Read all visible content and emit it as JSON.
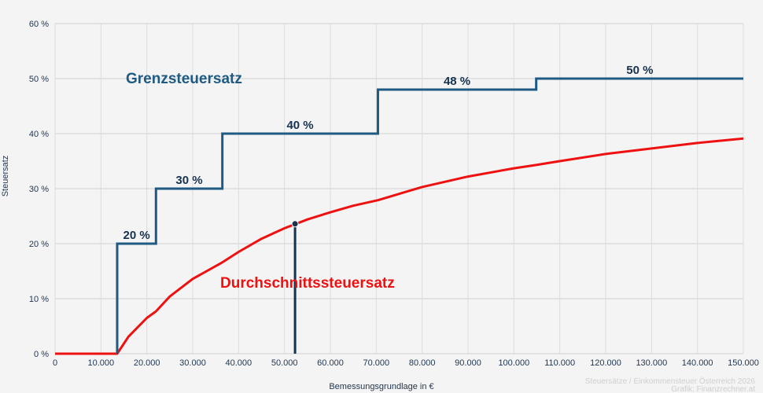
{
  "chart_data": {
    "type": "line",
    "title": "",
    "xlabel": "Bemessungsgrundlage in €",
    "ylabel": "Steuersatz",
    "xlim": [
      0,
      150000
    ],
    "ylim": [
      0,
      60
    ],
    "grid": true,
    "x_ticks": [
      0,
      10000,
      20000,
      30000,
      40000,
      50000,
      60000,
      70000,
      80000,
      90000,
      100000,
      110000,
      120000,
      130000,
      140000,
      150000
    ],
    "x_tick_labels": [
      "0",
      "10.000",
      "20.000",
      "30.000",
      "40.000",
      "50.000",
      "60.000",
      "70.000",
      "80.000",
      "90.000",
      "100.000",
      "110.000",
      "120.000",
      "130.000",
      "140.000",
      "150.000"
    ],
    "y_ticks": [
      0,
      10,
      20,
      30,
      40,
      50,
      60
    ],
    "y_tick_labels": [
      "0 %",
      "10 %",
      "20 %",
      "30 %",
      "40 %",
      "50 %",
      "60 %"
    ],
    "series": [
      {
        "name": "Grenzsteuersatz",
        "type": "step",
        "color": "#1f5a82",
        "brackets": [
          {
            "from": 0,
            "to": 13539,
            "rate": 0
          },
          {
            "from": 13539,
            "to": 21992,
            "rate": 20
          },
          {
            "from": 21992,
            "to": 36458,
            "rate": 30
          },
          {
            "from": 36458,
            "to": 70365,
            "rate": 40
          },
          {
            "from": 70365,
            "to": 104859,
            "rate": 48
          },
          {
            "from": 104859,
            "to": 150000,
            "rate": 50
          }
        ],
        "step_labels": [
          "20 %",
          "30 %",
          "40 %",
          "48 %",
          "50 %"
        ]
      },
      {
        "name": "Durchschnittssteuersatz",
        "type": "line",
        "color": "#ee1111",
        "x": [
          0,
          13539,
          16000,
          20000,
          21992,
          25000,
          30000,
          36458,
          40000,
          45000,
          50000,
          55000,
          60000,
          65000,
          70365,
          80000,
          90000,
          100000,
          104859,
          110000,
          120000,
          130000,
          140000,
          150000
        ],
        "values": [
          0,
          0,
          3.1,
          6.5,
          7.7,
          10.4,
          13.6,
          16.6,
          18.5,
          20.9,
          22.8,
          24.4,
          25.7,
          26.9,
          27.9,
          30.3,
          32.2,
          33.7,
          34.3,
          35.0,
          36.3,
          37.3,
          38.3,
          39.1
        ]
      }
    ],
    "annotations": [
      {
        "type": "marker",
        "x": 52300,
        "y": 23.6,
        "color": "#17324f",
        "note": "vertical line from x-axis to average curve with dot"
      },
      {
        "type": "label",
        "text": "Grenzsteuersatz",
        "color": "#1f5a82"
      },
      {
        "type": "label",
        "text": "Durchschnittssteuersatz",
        "color": "#ee1111"
      }
    ]
  },
  "labels": {
    "grenz": "Grenzsteuersatz",
    "avg": "Durchschnittssteuersatz",
    "xlabel": "Bemessungsgrundlage in €",
    "ylabel": "Steuersatz",
    "credit_line1": "Steuersätze / Einkommensteuer Österreich 2026",
    "credit_line2": "Grafik: Finanzrechner.at"
  },
  "colors": {
    "background": "#f4f4f4",
    "grid": "#dcdcdc",
    "marginal": "#1f5a82",
    "average": "#ee1111",
    "marker": "#17324f",
    "text": "#1f3550"
  }
}
